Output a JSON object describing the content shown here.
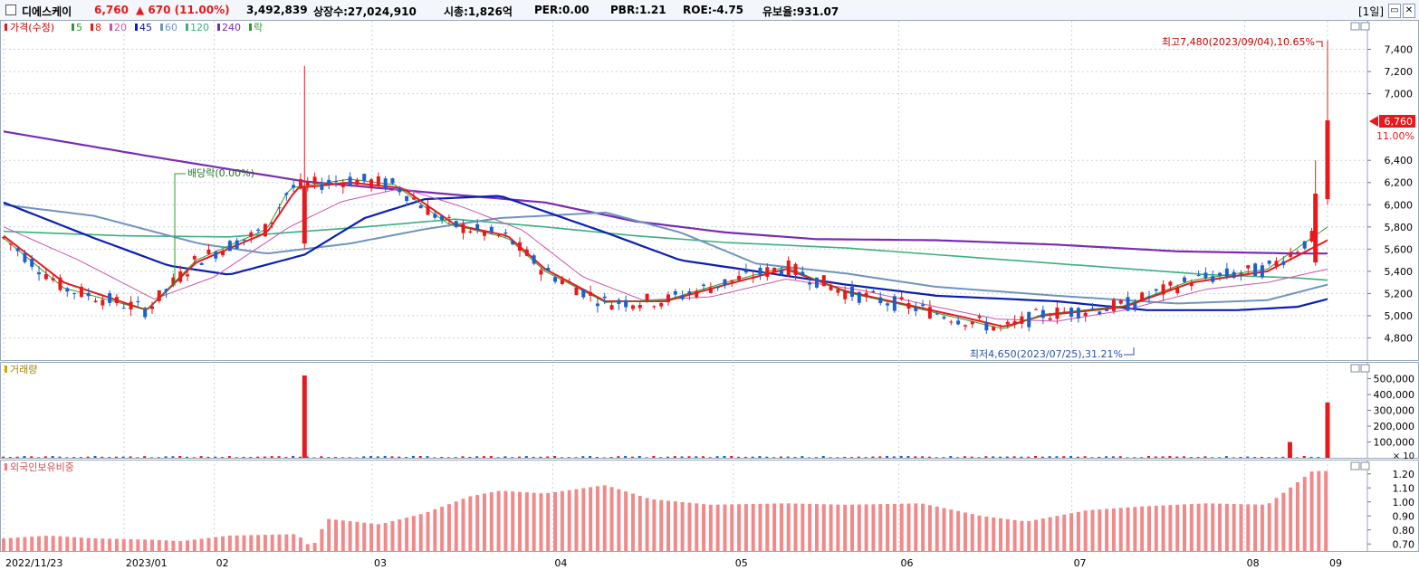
{
  "header": {
    "name": "디에스케이",
    "price": "6,760",
    "change": "▲ 670 (11.00%)",
    "volume": "3,492,839",
    "shares": "상장수:27,024,910",
    "mktcap": "시총:1,826억",
    "per": "PER:0.00",
    "pbr": "PBR:1.21",
    "roe": "ROE:-4.75",
    "turnover": "유보율:931.07",
    "period": "[1일]",
    "colors": {
      "up": "#e8191c",
      "down": "#1f5fc9"
    }
  },
  "price_legend": {
    "title": "가격(수정)",
    "items": [
      {
        "label": "5",
        "color": "#2e9a2e"
      },
      {
        "label": "8",
        "color": "#e8191c"
      },
      {
        "label": "20",
        "color": "#cc55aa"
      },
      {
        "label": "45",
        "color": "#0b1fb5"
      },
      {
        "label": "60",
        "color": "#6f94c0"
      },
      {
        "label": "120",
        "color": "#3ab07e"
      },
      {
        "label": "240",
        "color": "#7a2bb5"
      },
      {
        "label": "락",
        "color": "#2e9a2e"
      }
    ]
  },
  "annotations": {
    "high": "최고7,480(2023/09/04),10.65%",
    "low": "최저4,650(2023/07/25),31.21%",
    "dividend": "배당락(0.00%)",
    "last_price": "6,760",
    "last_pct": "11.00%"
  },
  "volume_title": "거래량",
  "foreign_title": "외국인보유비중",
  "chart_data": [
    {
      "type": "candlestick",
      "title": "가격(수정)",
      "x_range": [
        "2022/11/23",
        "2023/09/04"
      ],
      "ylim": [
        4600,
        7600
      ],
      "y_ticks": [
        4800,
        5000,
        5200,
        5400,
        5600,
        5800,
        6000,
        6200,
        6400,
        7000,
        7200,
        7400
      ],
      "y_tick_labels": [
        "4,800",
        "5,000",
        "5,200",
        "5,400",
        "5,600",
        "5,800",
        "6,000",
        "6,200",
        "6,400",
        "7,000",
        "7,200",
        "7,400"
      ],
      "highest": {
        "value": 7480,
        "date": "2023/09/04"
      },
      "lowest": {
        "value": 4650,
        "date": "2023/07/25"
      },
      "last": {
        "value": 6760,
        "change_pct": 11.0
      },
      "series_anchors": [
        {
          "name": "5",
          "points": [
            [
              0,
              5700
            ],
            [
              40,
              5250
            ],
            [
              95,
              5050
            ],
            [
              128,
              5500
            ],
            [
              175,
              5780
            ],
            [
              190,
              6150
            ],
            [
              230,
              6230
            ],
            [
              260,
              6180
            ],
            [
              295,
              5830
            ],
            [
              335,
              5700
            ],
            [
              360,
              5400
            ],
            [
              400,
              5120
            ],
            [
              440,
              5140
            ],
            [
              480,
              5300
            ],
            [
              520,
              5440
            ],
            [
              560,
              5210
            ],
            [
              600,
              5090
            ],
            [
              640,
              4960
            ],
            [
              665,
              4880
            ],
            [
              690,
              5010
            ],
            [
              745,
              5090
            ],
            [
              790,
              5320
            ],
            [
              840,
              5420
            ],
            [
              880,
              5800
            ]
          ]
        },
        {
          "name": "8",
          "points": [
            [
              0,
              5720
            ],
            [
              40,
              5300
            ],
            [
              95,
              5050
            ],
            [
              128,
              5480
            ],
            [
              175,
              5750
            ],
            [
              195,
              6150
            ],
            [
              230,
              6200
            ],
            [
              265,
              6150
            ],
            [
              300,
              5820
            ],
            [
              335,
              5720
            ],
            [
              360,
              5420
            ],
            [
              400,
              5130
            ],
            [
              440,
              5130
            ],
            [
              480,
              5280
            ],
            [
              520,
              5420
            ],
            [
              560,
              5220
            ],
            [
              600,
              5100
            ],
            [
              640,
              4980
            ],
            [
              665,
              4900
            ],
            [
              690,
              5000
            ],
            [
              745,
              5080
            ],
            [
              790,
              5300
            ],
            [
              840,
              5400
            ],
            [
              880,
              5680
            ]
          ]
        },
        {
          "name": "20",
          "points": [
            [
              0,
              5800
            ],
            [
              50,
              5500
            ],
            [
              100,
              5150
            ],
            [
              140,
              5350
            ],
            [
              190,
              5800
            ],
            [
              225,
              6030
            ],
            [
              265,
              6150
            ],
            [
              305,
              5980
            ],
            [
              345,
              5770
            ],
            [
              385,
              5350
            ],
            [
              425,
              5140
            ],
            [
              470,
              5170
            ],
            [
              520,
              5330
            ],
            [
              570,
              5230
            ],
            [
              620,
              5080
            ],
            [
              660,
              4970
            ],
            [
              700,
              4950
            ],
            [
              745,
              5050
            ],
            [
              800,
              5240
            ],
            [
              840,
              5300
            ],
            [
              880,
              5420
            ]
          ]
        },
        {
          "name": "45",
          "points": [
            [
              0,
              6020
            ],
            [
              60,
              5700
            ],
            [
              110,
              5450
            ],
            [
              150,
              5370
            ],
            [
              200,
              5550
            ],
            [
              240,
              5880
            ],
            [
              280,
              6050
            ],
            [
              330,
              6080
            ],
            [
              400,
              5750
            ],
            [
              450,
              5500
            ],
            [
              500,
              5400
            ],
            [
              560,
              5280
            ],
            [
              620,
              5180
            ],
            [
              700,
              5130
            ],
            [
              760,
              5050
            ],
            [
              820,
              5050
            ],
            [
              860,
              5080
            ],
            [
              880,
              5150
            ]
          ]
        },
        {
          "name": "60",
          "points": [
            [
              0,
              6000
            ],
            [
              60,
              5900
            ],
            [
              130,
              5650
            ],
            [
              175,
              5560
            ],
            [
              230,
              5650
            ],
            [
              280,
              5780
            ],
            [
              330,
              5880
            ],
            [
              400,
              5930
            ],
            [
              450,
              5750
            ],
            [
              500,
              5470
            ],
            [
              560,
              5380
            ],
            [
              620,
              5260
            ],
            [
              700,
              5180
            ],
            [
              780,
              5110
            ],
            [
              840,
              5140
            ],
            [
              880,
              5280
            ]
          ]
        },
        {
          "name": "120",
          "points": [
            [
              0,
              5760
            ],
            [
              80,
              5720
            ],
            [
              150,
              5710
            ],
            [
              240,
              5800
            ],
            [
              300,
              5870
            ],
            [
              360,
              5800
            ],
            [
              420,
              5720
            ],
            [
              480,
              5660
            ],
            [
              560,
              5610
            ],
            [
              640,
              5530
            ],
            [
              720,
              5450
            ],
            [
              800,
              5370
            ],
            [
              860,
              5340
            ],
            [
              880,
              5320
            ]
          ]
        },
        {
          "name": "240",
          "points": [
            [
              0,
              6660
            ],
            [
              100,
              6430
            ],
            [
              200,
              6210
            ],
            [
              300,
              6090
            ],
            [
              360,
              6020
            ],
            [
              420,
              5850
            ],
            [
              480,
              5750
            ],
            [
              540,
              5690
            ],
            [
              620,
              5680
            ],
            [
              700,
              5640
            ],
            [
              780,
              5580
            ],
            [
              860,
              5560
            ],
            [
              880,
              5560
            ]
          ]
        }
      ]
    },
    {
      "type": "bar",
      "title": "거래량",
      "y_ticks": [
        100000,
        200000,
        300000,
        400000,
        500000
      ],
      "y_tick_labels": [
        "100,000",
        "200,000",
        "300,000",
        "400,000",
        "500,000"
      ],
      "unit_label": "× 10",
      "spikes": [
        {
          "date_index": 200,
          "value": 520000
        },
        {
          "date_index": 855,
          "value": 100000
        },
        {
          "date_index": 880,
          "value": 349284
        }
      ]
    },
    {
      "type": "bar",
      "title": "외국인보유비중",
      "ylim": [
        0.65,
        1.25
      ],
      "y_ticks": [
        0.7,
        0.8,
        0.9,
        1.0,
        1.1,
        1.2
      ],
      "y_tick_labels": [
        "0.70",
        "0.80",
        "0.90",
        "1.00",
        "1.10",
        "1.20"
      ],
      "level_anchors": [
        [
          0,
          0.74
        ],
        [
          30,
          0.76
        ],
        [
          60,
          0.74
        ],
        [
          100,
          0.73
        ],
        [
          118,
          0.72
        ],
        [
          150,
          0.76
        ],
        [
          195,
          0.77
        ],
        [
          205,
          0.67
        ],
        [
          215,
          0.88
        ],
        [
          250,
          0.84
        ],
        [
          280,
          0.92
        ],
        [
          310,
          1.04
        ],
        [
          330,
          1.08
        ],
        [
          360,
          1.06
        ],
        [
          400,
          1.12
        ],
        [
          430,
          1.02
        ],
        [
          470,
          0.98
        ],
        [
          520,
          0.99
        ],
        [
          560,
          0.98
        ],
        [
          610,
          0.99
        ],
        [
          650,
          0.9
        ],
        [
          680,
          0.86
        ],
        [
          720,
          0.94
        ],
        [
          760,
          0.97
        ],
        [
          800,
          0.99
        ],
        [
          840,
          0.98
        ],
        [
          870,
          1.22
        ],
        [
          880,
          1.22
        ]
      ]
    }
  ],
  "x_axis": {
    "labels": [
      "2022/11/23",
      "2023/01",
      "02",
      "03",
      "04",
      "05",
      "06",
      "07",
      "08",
      "09"
    ]
  }
}
